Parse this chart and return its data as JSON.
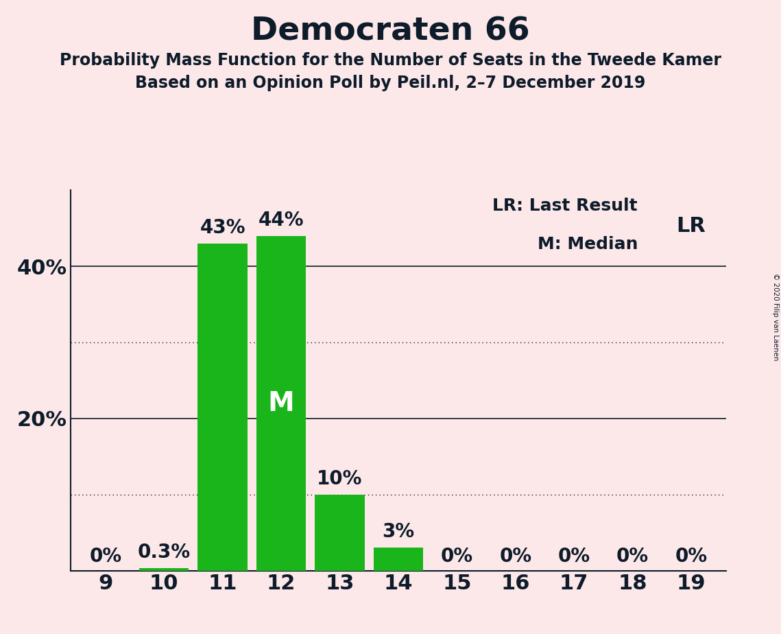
{
  "title": "Democraten 66",
  "subtitle1": "Probability Mass Function for the Number of Seats in the Tweede Kamer",
  "subtitle2": "Based on an Opinion Poll by Peil.nl, 2–7 December 2019",
  "copyright": "© 2020 Filip van Laenen",
  "seats": [
    9,
    10,
    11,
    12,
    13,
    14,
    15,
    16,
    17,
    18,
    19
  ],
  "values": [
    0.0,
    0.3,
    43.0,
    44.0,
    10.0,
    3.0,
    0.0,
    0.0,
    0.0,
    0.0,
    0.0
  ],
  "bar_color": "#1ab51a",
  "background_color": "#fce8e8",
  "text_color": "#0d1b2a",
  "median_seat": 12,
  "lr_seat": 19,
  "ylim": [
    0,
    50
  ],
  "solid_gridlines": [
    20,
    40
  ],
  "dotted_gridlines": [
    10,
    30
  ],
  "legend_lr": "LR: Last Result",
  "legend_m": "M: Median",
  "value_labels": [
    "0%",
    "0.3%",
    "43%",
    "44%",
    "10%",
    "3%",
    "0%",
    "0%",
    "0%",
    "0%",
    "0%"
  ]
}
